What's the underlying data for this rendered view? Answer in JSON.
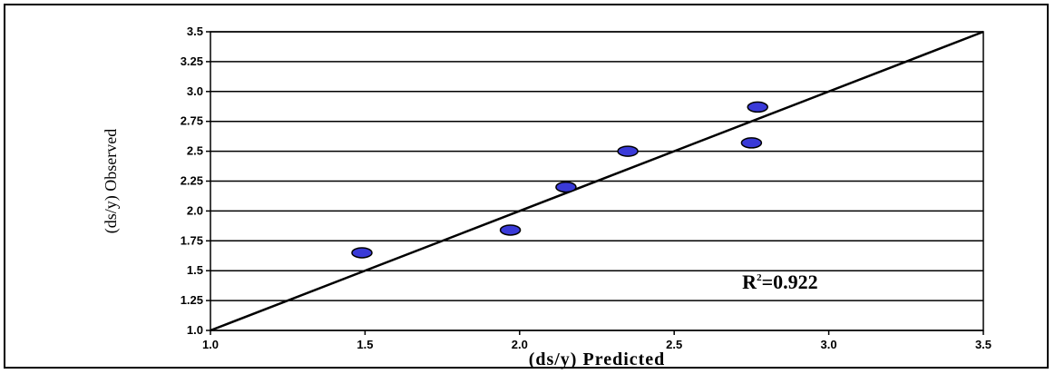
{
  "chart_data": {
    "type": "scatter",
    "xlabel": "(ds/y) Predicted",
    "ylabel": "(ds/y) Observed",
    "xlim": [
      1.0,
      3.5
    ],
    "ylim": [
      1.0,
      3.5
    ],
    "x_ticks": [
      "1.0",
      "1.5",
      "2.0",
      "2.5",
      "3.0",
      "3.5"
    ],
    "y_ticks": [
      "1.0",
      "1.25",
      "1.5",
      "1.75",
      "2.0",
      "2.25",
      "2.5",
      "2.75",
      "3.0",
      "3.25",
      "3.5"
    ],
    "grid": "horizontal",
    "points": [
      {
        "x": 1.49,
        "y": 1.65
      },
      {
        "x": 1.97,
        "y": 1.84
      },
      {
        "x": 2.15,
        "y": 2.2
      },
      {
        "x": 2.35,
        "y": 2.5
      },
      {
        "x": 2.75,
        "y": 2.57
      },
      {
        "x": 2.77,
        "y": 2.87
      }
    ],
    "reference_line": {
      "from": [
        1.0,
        1.0
      ],
      "to": [
        3.5,
        3.5
      ]
    },
    "annotation": {
      "text": "R",
      "superscript": "2",
      "value": "=0.922",
      "x": 2.72,
      "y": 1.35
    },
    "colors": {
      "point_fill": "#3a3ad8",
      "point_stroke": "#000000",
      "line": "#000000",
      "grid": "#000000"
    }
  }
}
